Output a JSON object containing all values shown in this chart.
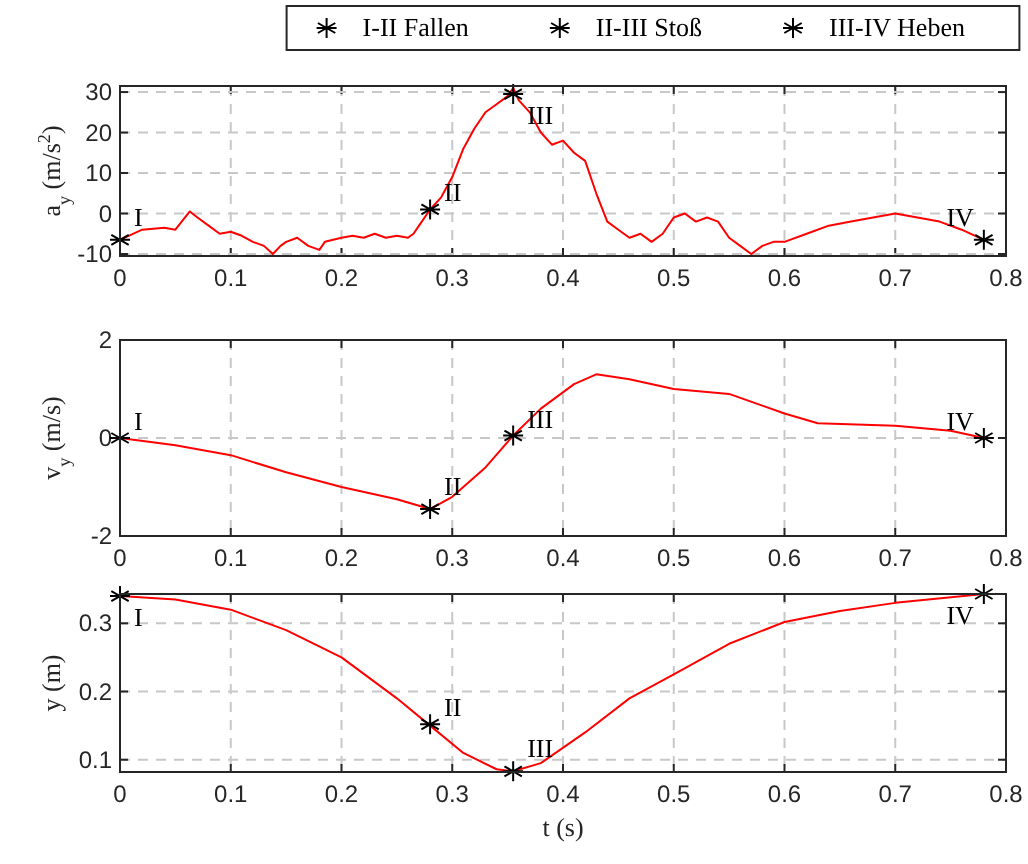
{
  "chart_data": [
    {
      "type": "line",
      "ylabel": "a$_{y}$ (m/s$^{2}$)",
      "xlim": [
        0,
        0.8
      ],
      "xticks": [
        0,
        0.1,
        0.2,
        0.3,
        0.4,
        0.5,
        0.6,
        0.7,
        0.8
      ],
      "ylim": [
        -10.5,
        31.5
      ],
      "yticks": [
        -10,
        0,
        10,
        20,
        30
      ],
      "grid": true,
      "legend": "top",
      "series": [
        {
          "marker": "none",
          "color": "#ff0000",
          "x": [
            0,
            0.02,
            0.04,
            0.05,
            0.063,
            0.07,
            0.08,
            0.09,
            0.1,
            0.11,
            0.12,
            0.13,
            0.138,
            0.145,
            0.15,
            0.16,
            0.17,
            0.18,
            0.185,
            0.2,
            0.21,
            0.22,
            0.23,
            0.24,
            0.25,
            0.26,
            0.265,
            0.27,
            0.28,
            0.29,
            0.3,
            0.31,
            0.32,
            0.33,
            0.34,
            0.35,
            0.355,
            0.36,
            0.37,
            0.38,
            0.39,
            0.4,
            0.41,
            0.42,
            0.43,
            0.44,
            0.45,
            0.46,
            0.47,
            0.48,
            0.49,
            0.5,
            0.51,
            0.52,
            0.53,
            0.54,
            0.55,
            0.56,
            0.57,
            0.58,
            0.59,
            0.6,
            0.62,
            0.64,
            0.66,
            0.68,
            0.7,
            0.72,
            0.74,
            0.76,
            0.78
          ],
          "values": [
            -6.5,
            -4,
            -3.5,
            -4,
            0.5,
            -1,
            -3,
            -5,
            -4.5,
            -5.5,
            -7,
            -8,
            -10,
            -8,
            -7,
            -6,
            -8,
            -9,
            -7,
            -6,
            -5.5,
            -6,
            -5,
            -6,
            -5.5,
            -6,
            -5,
            -3,
            1,
            4,
            9,
            16,
            21,
            25,
            27,
            29,
            31,
            28,
            25,
            20,
            17,
            18,
            15,
            13,
            5,
            -2,
            -4,
            -6,
            -5,
            -7,
            -5,
            -1,
            0,
            -2,
            -1,
            -2,
            -6,
            -8,
            -10,
            -8,
            -7,
            -7,
            -5,
            -3,
            -2,
            -1,
            0,
            -1,
            -2,
            -4,
            -6.5
          ]
        },
        {
          "type": "scatter",
          "marker": "cross",
          "name": "I-II Fallen",
          "color": "#000000",
          "x": [
            0,
            0.28
          ],
          "values": [
            -6.5,
            1
          ]
        },
        {
          "type": "scatter",
          "marker": "cross",
          "name": "II-III Stoß",
          "color": "#000000",
          "x": [
            0.355
          ],
          "values": [
            29.5
          ]
        },
        {
          "type": "scatter",
          "marker": "cross",
          "name": "III-IV Heben",
          "color": "#000000",
          "x": [
            0.78
          ],
          "values": [
            -6.5
          ]
        }
      ],
      "annotations": [
        {
          "text": "I",
          "x": 0,
          "y": -6.5
        },
        {
          "text": "II",
          "x": 0.28,
          "y": 1
        },
        {
          "text": "III",
          "x": 0.355,
          "y": 29.5
        },
        {
          "text": "IV",
          "x": 0.78,
          "y": -6.5
        }
      ]
    },
    {
      "type": "line",
      "ylabel": "v$_{y}$ (m/s)",
      "xlim": [
        0,
        0.8
      ],
      "xticks": [
        0,
        0.1,
        0.2,
        0.3,
        0.4,
        0.5,
        0.6,
        0.7,
        0.8
      ],
      "ylim": [
        -2,
        2
      ],
      "yticks": [
        -2,
        0,
        2
      ],
      "grid": true,
      "series": [
        {
          "marker": "none",
          "color": "#ff0000",
          "x": [
            0,
            0.05,
            0.1,
            0.15,
            0.2,
            0.25,
            0.28,
            0.3,
            0.33,
            0.355,
            0.38,
            0.41,
            0.43,
            0.46,
            0.5,
            0.55,
            0.6,
            0.63,
            0.7,
            0.75,
            0.78
          ],
          "values": [
            0,
            -0.15,
            -0.35,
            -0.7,
            -1.0,
            -1.25,
            -1.45,
            -1.2,
            -0.6,
            0.05,
            0.6,
            1.1,
            1.3,
            1.2,
            1.0,
            0.9,
            0.5,
            0.3,
            0.25,
            0.15,
            0
          ]
        },
        {
          "type": "scatter",
          "marker": "cross",
          "color": "#000000",
          "x": [
            0,
            0.28,
            0.355,
            0.78
          ],
          "values": [
            0,
            -1.45,
            0.05,
            0
          ]
        }
      ],
      "annotations": [
        {
          "text": "I",
          "x": 0,
          "y": 0
        },
        {
          "text": "II",
          "x": 0.28,
          "y": -1.45
        },
        {
          "text": "III",
          "x": 0.355,
          "y": 0.05
        },
        {
          "text": "IV",
          "x": 0.78,
          "y": 0
        }
      ]
    },
    {
      "type": "line",
      "ylabel": "y (m)",
      "xlabel": "t (s)",
      "xlim": [
        0,
        0.8
      ],
      "xticks": [
        0,
        0.1,
        0.2,
        0.3,
        0.4,
        0.5,
        0.6,
        0.7,
        0.8
      ],
      "ylim": [
        0.082,
        0.343
      ],
      "yticks": [
        0.1,
        0.2,
        0.3
      ],
      "grid": true,
      "series": [
        {
          "marker": "none",
          "color": "#ff0000",
          "x": [
            0,
            0.05,
            0.1,
            0.15,
            0.2,
            0.25,
            0.28,
            0.31,
            0.34,
            0.355,
            0.38,
            0.42,
            0.46,
            0.5,
            0.55,
            0.6,
            0.65,
            0.7,
            0.78
          ],
          "values": [
            0.34,
            0.335,
            0.32,
            0.29,
            0.25,
            0.19,
            0.15,
            0.11,
            0.086,
            0.083,
            0.095,
            0.14,
            0.19,
            0.225,
            0.27,
            0.302,
            0.318,
            0.33,
            0.343
          ]
        },
        {
          "type": "scatter",
          "marker": "cross",
          "color": "#000000",
          "x": [
            0,
            0.28,
            0.355,
            0.78
          ],
          "values": [
            0.34,
            0.152,
            0.083,
            0.343
          ]
        }
      ],
      "annotations": [
        {
          "text": "I",
          "x": 0,
          "y": 0.34
        },
        {
          "text": "II",
          "x": 0.28,
          "y": 0.152
        },
        {
          "text": "III",
          "x": 0.355,
          "y": 0.083
        },
        {
          "text": "IV",
          "x": 0.78,
          "y": 0.343
        }
      ]
    }
  ]
}
